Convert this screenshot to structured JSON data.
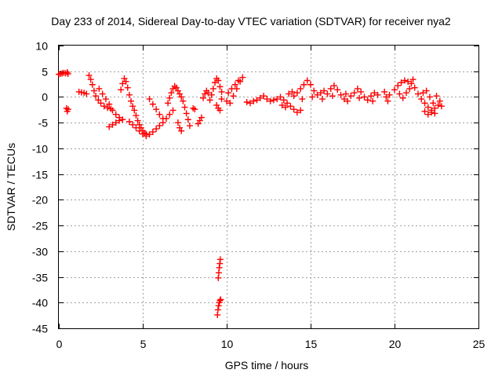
{
  "chart_data": {
    "type": "scatter",
    "title": "Day 233 of 2014, Sidereal Day-to-day VTEC variation (SDTVAR) for receiver nya2",
    "xlabel": "GPS time / hours",
    "ylabel": "SDTVAR / TECUs",
    "xlim": [
      0,
      25
    ],
    "ylim": [
      -45,
      10
    ],
    "xticks": [
      0,
      5,
      10,
      15,
      20,
      25
    ],
    "yticks": [
      10,
      5,
      0,
      -5,
      -10,
      -15,
      -20,
      -25,
      -30,
      -35,
      -40,
      -45
    ],
    "grid": true,
    "marker": "+",
    "color": "#ff0000",
    "series": [
      {
        "name": "SDTVAR",
        "points": [
          [
            0.0,
            4.4
          ],
          [
            0.1,
            4.5
          ],
          [
            0.2,
            4.6
          ],
          [
            0.3,
            4.7
          ],
          [
            0.4,
            4.6
          ],
          [
            0.5,
            4.8
          ],
          [
            0.55,
            4.5
          ],
          [
            0.45,
            -2.2
          ],
          [
            0.5,
            -2.8
          ],
          [
            0.55,
            -2.4
          ],
          [
            1.2,
            1.0
          ],
          [
            1.35,
            0.9
          ],
          [
            1.5,
            0.8
          ],
          [
            1.65,
            0.6
          ],
          [
            1.8,
            4.2
          ],
          [
            1.9,
            3.4
          ],
          [
            2.0,
            2.4
          ],
          [
            2.1,
            1.2
          ],
          [
            2.2,
            0.2
          ],
          [
            2.35,
            -0.6
          ],
          [
            2.5,
            -1.2
          ],
          [
            2.7,
            -1.8
          ],
          [
            2.9,
            -2.1
          ],
          [
            3.1,
            -2.3
          ],
          [
            2.4,
            1.6
          ],
          [
            2.6,
            0.6
          ],
          [
            2.8,
            -0.4
          ],
          [
            3.0,
            -1.4
          ],
          [
            3.2,
            -2.6
          ],
          [
            3.4,
            -3.4
          ],
          [
            3.6,
            -4.0
          ],
          [
            3.8,
            -4.4
          ],
          [
            3.0,
            -5.8
          ],
          [
            3.2,
            -5.4
          ],
          [
            3.4,
            -5.0
          ],
          [
            3.6,
            -4.6
          ],
          [
            3.7,
            1.4
          ],
          [
            3.8,
            2.6
          ],
          [
            3.9,
            3.6
          ],
          [
            4.0,
            3.0
          ],
          [
            4.1,
            1.8
          ],
          [
            4.2,
            0.4
          ],
          [
            4.3,
            -0.8
          ],
          [
            4.4,
            -1.8
          ],
          [
            4.5,
            -2.6
          ],
          [
            4.6,
            -3.6
          ],
          [
            4.7,
            -4.6
          ],
          [
            4.8,
            -5.4
          ],
          [
            4.9,
            -6.0
          ],
          [
            5.0,
            -6.6
          ],
          [
            5.1,
            -7.0
          ],
          [
            5.2,
            -7.2
          ],
          [
            4.2,
            -4.8
          ],
          [
            4.4,
            -5.4
          ],
          [
            4.6,
            -6.0
          ],
          [
            4.8,
            -6.6
          ],
          [
            5.0,
            -7.2
          ],
          [
            5.2,
            -7.6
          ],
          [
            5.4,
            -7.3
          ],
          [
            5.6,
            -6.8
          ],
          [
            5.8,
            -6.2
          ],
          [
            6.0,
            -5.6
          ],
          [
            6.2,
            -5.0
          ],
          [
            6.4,
            -4.2
          ],
          [
            6.6,
            -3.4
          ],
          [
            6.8,
            -2.6
          ],
          [
            5.4,
            -0.4
          ],
          [
            5.6,
            -1.4
          ],
          [
            5.8,
            -2.4
          ],
          [
            6.0,
            -3.4
          ],
          [
            6.2,
            -4.2
          ],
          [
            6.5,
            -1.2
          ],
          [
            6.6,
            -0.2
          ],
          [
            6.7,
            0.8
          ],
          [
            6.8,
            1.6
          ],
          [
            6.9,
            2.1
          ],
          [
            7.0,
            1.8
          ],
          [
            7.1,
            1.2
          ],
          [
            7.2,
            0.6
          ],
          [
            7.3,
            0.0
          ],
          [
            7.4,
            -0.8
          ],
          [
            7.5,
            -2.0
          ],
          [
            7.6,
            -3.2
          ],
          [
            7.7,
            -4.4
          ],
          [
            7.8,
            -5.6
          ],
          [
            7.1,
            -5.0
          ],
          [
            7.2,
            -6.0
          ],
          [
            7.3,
            -6.6
          ],
          [
            8.0,
            -2.2
          ],
          [
            8.1,
            -2.4
          ],
          [
            8.3,
            -5.2
          ],
          [
            8.4,
            -4.6
          ],
          [
            8.5,
            -4.0
          ],
          [
            8.6,
            -0.2
          ],
          [
            8.7,
            0.6
          ],
          [
            8.8,
            1.2
          ],
          [
            8.9,
            0.8
          ],
          [
            9.0,
            -0.6
          ],
          [
            9.1,
            0.4
          ],
          [
            9.2,
            1.6
          ],
          [
            9.3,
            2.8
          ],
          [
            9.4,
            3.6
          ],
          [
            9.5,
            3.2
          ],
          [
            9.6,
            2.0
          ],
          [
            9.7,
            1.0
          ],
          [
            9.4,
            -1.6
          ],
          [
            9.5,
            -2.2
          ],
          [
            9.6,
            -2.6
          ],
          [
            9.7,
            -0.4
          ],
          [
            9.5,
            -35.2
          ],
          [
            9.53,
            -34.2
          ],
          [
            9.56,
            -33.2
          ],
          [
            9.59,
            -32.4
          ],
          [
            9.62,
            -31.6
          ],
          [
            9.45,
            -42.4
          ],
          [
            9.48,
            -41.4
          ],
          [
            9.52,
            -40.6
          ],
          [
            9.56,
            -40.0
          ],
          [
            9.6,
            -39.6
          ],
          [
            9.64,
            -39.4
          ],
          [
            10.0,
            -0.8
          ],
          [
            10.2,
            -1.2
          ],
          [
            10.4,
            0.2
          ],
          [
            10.6,
            1.6
          ],
          [
            10.8,
            3.0
          ],
          [
            10.95,
            3.8
          ],
          [
            10.1,
            0.8
          ],
          [
            10.3,
            1.6
          ],
          [
            10.5,
            2.4
          ],
          [
            10.7,
            3.2
          ],
          [
            11.2,
            -1.0
          ],
          [
            11.4,
            -1.2
          ],
          [
            11.6,
            -0.8
          ],
          [
            11.8,
            -0.6
          ],
          [
            12.0,
            -0.2
          ],
          [
            12.2,
            0.2
          ],
          [
            12.4,
            -0.4
          ],
          [
            12.6,
            -0.8
          ],
          [
            12.8,
            -0.6
          ],
          [
            13.0,
            -0.4
          ],
          [
            13.2,
            0.0
          ],
          [
            13.4,
            -0.6
          ],
          [
            13.6,
            -1.2
          ],
          [
            13.8,
            -1.8
          ],
          [
            14.0,
            -2.4
          ],
          [
            14.2,
            -3.0
          ],
          [
            14.4,
            -2.6
          ],
          [
            13.3,
            -1.6
          ],
          [
            13.5,
            -2.0
          ],
          [
            13.7,
            0.6
          ],
          [
            13.9,
            1.0
          ],
          [
            14.2,
            0.8
          ],
          [
            14.4,
            1.6
          ],
          [
            14.6,
            2.4
          ],
          [
            14.8,
            3.2
          ],
          [
            15.0,
            2.4
          ],
          [
            15.2,
            1.2
          ],
          [
            15.4,
            0.4
          ],
          [
            15.6,
            0.8
          ],
          [
            15.8,
            1.2
          ],
          [
            16.0,
            0.6
          ],
          [
            16.2,
            1.6
          ],
          [
            16.4,
            2.2
          ],
          [
            16.6,
            1.4
          ],
          [
            16.8,
            0.4
          ],
          [
            17.0,
            -0.4
          ],
          [
            17.2,
            -0.8
          ],
          [
            17.4,
            0.2
          ],
          [
            17.6,
            0.8
          ],
          [
            17.8,
            1.6
          ],
          [
            18.0,
            1.0
          ],
          [
            18.2,
            0.0
          ],
          [
            18.4,
            -0.6
          ],
          [
            18.6,
            0.2
          ],
          [
            18.8,
            0.8
          ],
          [
            19.0,
            0.4
          ],
          [
            14.0,
            0.2
          ],
          [
            14.5,
            -0.4
          ],
          [
            15.1,
            0.0
          ],
          [
            15.7,
            -0.4
          ],
          [
            16.3,
            0.2
          ],
          [
            17.1,
            0.6
          ],
          [
            17.9,
            -0.2
          ],
          [
            18.7,
            -0.8
          ],
          [
            19.4,
            1.0
          ],
          [
            19.5,
            0.0
          ],
          [
            19.6,
            -0.8
          ],
          [
            19.7,
            0.4
          ],
          [
            20.0,
            1.4
          ],
          [
            20.2,
            2.2
          ],
          [
            20.4,
            2.8
          ],
          [
            20.6,
            3.2
          ],
          [
            20.8,
            3.0
          ],
          [
            21.0,
            2.6
          ],
          [
            21.2,
            1.8
          ],
          [
            21.4,
            0.6
          ],
          [
            21.6,
            -0.4
          ],
          [
            21.8,
            -1.2
          ],
          [
            22.0,
            -2.0
          ],
          [
            22.2,
            -2.6
          ],
          [
            22.4,
            -2.2
          ],
          [
            22.6,
            -1.6
          ],
          [
            22.8,
            -1.8
          ],
          [
            20.3,
            0.6
          ],
          [
            20.5,
            -0.2
          ],
          [
            20.7,
            0.8
          ],
          [
            20.9,
            1.6
          ],
          [
            21.1,
            3.4
          ],
          [
            21.7,
            0.8
          ],
          [
            21.9,
            1.2
          ],
          [
            22.1,
            0.0
          ],
          [
            22.3,
            -1.2
          ],
          [
            22.5,
            0.2
          ],
          [
            22.7,
            -0.8
          ],
          [
            21.8,
            -2.8
          ],
          [
            22.0,
            -3.4
          ],
          [
            22.2,
            -3.0
          ],
          [
            22.4,
            -3.2
          ]
        ]
      }
    ]
  }
}
